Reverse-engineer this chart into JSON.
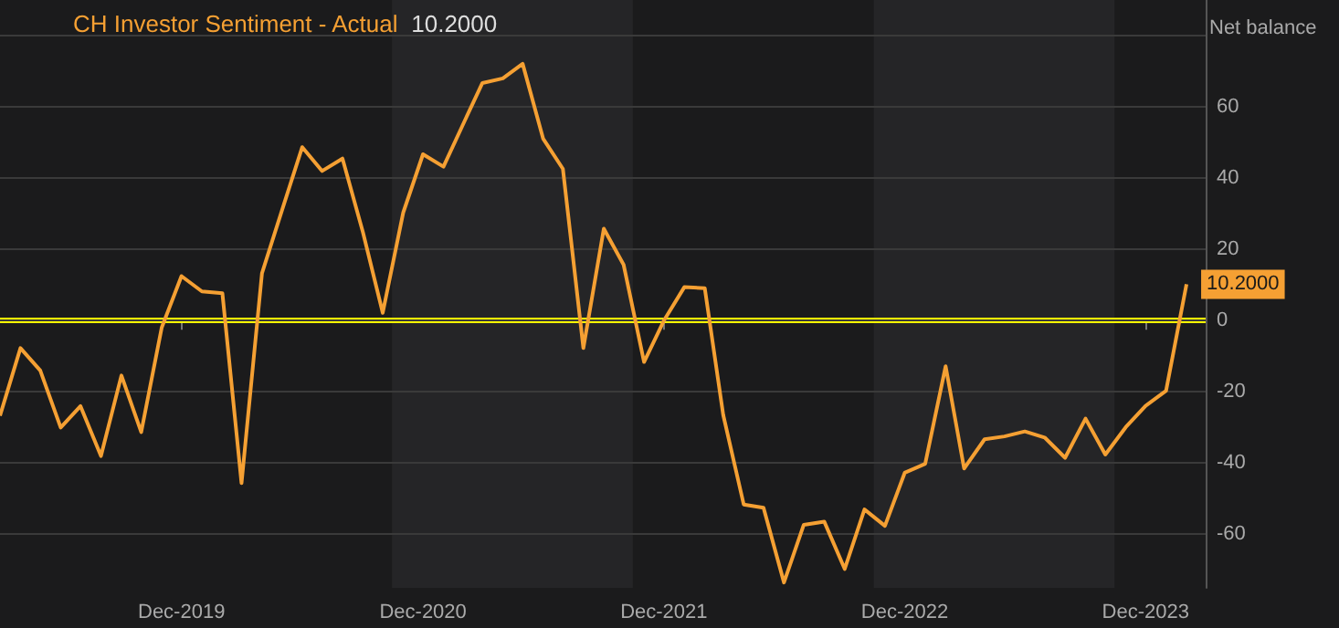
{
  "chart_data": {
    "type": "line",
    "ylabel": "Net balance",
    "annotations": [
      "10.2000"
    ],
    "x": [
      "2019-03",
      "2019-04",
      "2019-05",
      "2019-06",
      "2019-07",
      "2019-08",
      "2019-09",
      "2019-10",
      "2019-11",
      "2019-12",
      "2020-01",
      "2020-02",
      "2020-03",
      "2020-04",
      "2020-05",
      "2020-06",
      "2020-07",
      "2020-08",
      "2020-09",
      "2020-10",
      "2020-11",
      "2020-12",
      "2021-01",
      "2021-02",
      "2021-03",
      "2021-04",
      "2021-05",
      "2021-06",
      "2021-07",
      "2021-08",
      "2021-09",
      "2021-10",
      "2021-11",
      "2021-12",
      "2022-01",
      "2022-02",
      "2022-03",
      "2022-04",
      "2022-05",
      "2022-06",
      "2022-07",
      "2022-08",
      "2022-09",
      "2022-10",
      "2022-11",
      "2022-12",
      "2023-01",
      "2023-02",
      "2023-03",
      "2023-04",
      "2023-05",
      "2023-06",
      "2023-07",
      "2023-08",
      "2023-09",
      "2023-10",
      "2023-11",
      "2023-12",
      "2024-01",
      "2024-02"
    ],
    "series": [
      {
        "name": "CH Investor Sentiment - Actual",
        "color": "#f5a033",
        "values": [
          -26.7,
          -7.7,
          -14,
          -30,
          -24,
          -38,
          -15.4,
          -31.3,
          -2,
          12.5,
          8.2,
          7.7,
          -45.6,
          13.3,
          30.8,
          48.7,
          42,
          45.5,
          24.8,
          2.2,
          30.3,
          46.7,
          43.2,
          55.6,
          66.7,
          68,
          72.1,
          51.1,
          42.6,
          -7.7,
          25.8,
          15.7,
          -11.6,
          0,
          9.4,
          9.1,
          -26.5,
          -51.6,
          -52.5,
          -73.5,
          -57.3,
          -56.4,
          -69.7,
          -53,
          -57.6,
          -42.7,
          -40.2,
          -12.8,
          -41.5,
          -33.3,
          -32.5,
          -31.1,
          -32.8,
          -38.5,
          -27.5,
          -37.6,
          -29.9,
          -23.9,
          -19.7,
          10.2
        ],
        "value_labels": [
          null,
          null,
          null,
          null,
          null,
          null,
          null,
          null,
          null,
          null,
          null,
          null,
          null,
          null,
          null,
          null,
          null,
          null,
          null,
          null,
          null,
          null,
          null,
          null,
          null,
          null,
          null,
          null,
          null,
          null,
          null,
          null,
          null,
          null,
          null,
          null,
          null,
          null,
          null,
          null,
          null,
          null,
          null,
          null,
          null,
          null,
          null,
          null,
          null,
          null,
          null,
          null,
          null,
          null,
          null,
          null,
          null,
          null,
          null,
          "10.2000"
        ]
      }
    ],
    "xlim": [
      "2019-03",
      "2024-03"
    ],
    "xticks": [
      {
        "value": "2019-12",
        "label": "Dec-2019"
      },
      {
        "value": "2020-12",
        "label": "Dec-2020"
      },
      {
        "value": "2021-12",
        "label": "Dec-2021"
      },
      {
        "value": "2022-12",
        "label": "Dec-2022"
      },
      {
        "value": "2023-12",
        "label": "Dec-2023"
      }
    ],
    "ylim": [
      -75,
      90
    ],
    "yticks": [
      -60,
      -40,
      -20,
      0,
      20,
      40,
      60,
      {
        "value": 80,
        "label": null
      }
    ],
    "grid": "y",
    "legend": "top left",
    "marker": "none",
    "line_style": "solid",
    "ref_lines": [
      {
        "axis": "y",
        "value": 0,
        "color": "#ffff00"
      }
    ],
    "bands": [
      {
        "axis": "x",
        "from": "2020-10-15",
        "to": "2021-10-15",
        "color": "#252527"
      },
      {
        "axis": "x",
        "from": "2022-10-15",
        "to": "2023-10-15",
        "color": "#252527"
      }
    ]
  }
}
